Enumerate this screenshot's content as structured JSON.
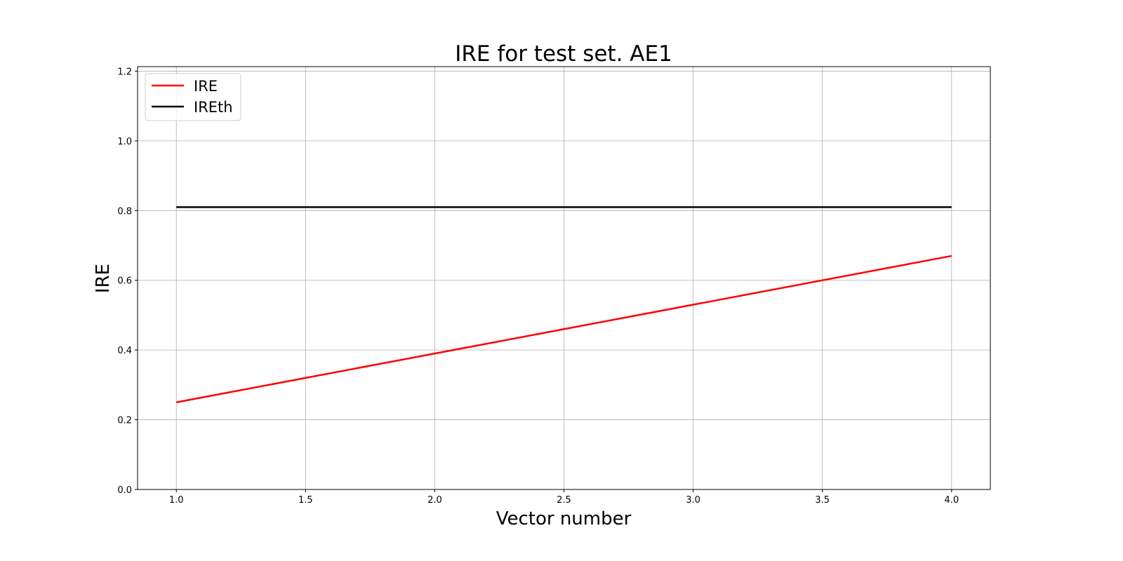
{
  "chart_data": {
    "type": "line",
    "title": "IRE for test set. AE1",
    "xlabel": "Vector number",
    "ylabel": "IRE",
    "xlim": [
      0.85,
      4.15
    ],
    "ylim": [
      0,
      1.213
    ],
    "xticks": [
      "1.0",
      "1.5",
      "2.0",
      "2.5",
      "3.0",
      "3.5",
      "4.0"
    ],
    "yticks": [
      "0.0",
      "0.2",
      "0.4",
      "0.6",
      "0.8",
      "1.0",
      "1.2"
    ],
    "grid": true,
    "legend_position": "upper-left",
    "x": [
      1,
      2,
      3,
      4
    ],
    "series": [
      {
        "name": "IRE",
        "color": "#ff0000",
        "values": [
          0.25,
          0.39,
          0.53,
          0.67
        ]
      },
      {
        "name": "IREth",
        "color": "#000000",
        "values": [
          0.81,
          0.81,
          0.81,
          0.81
        ]
      }
    ]
  }
}
